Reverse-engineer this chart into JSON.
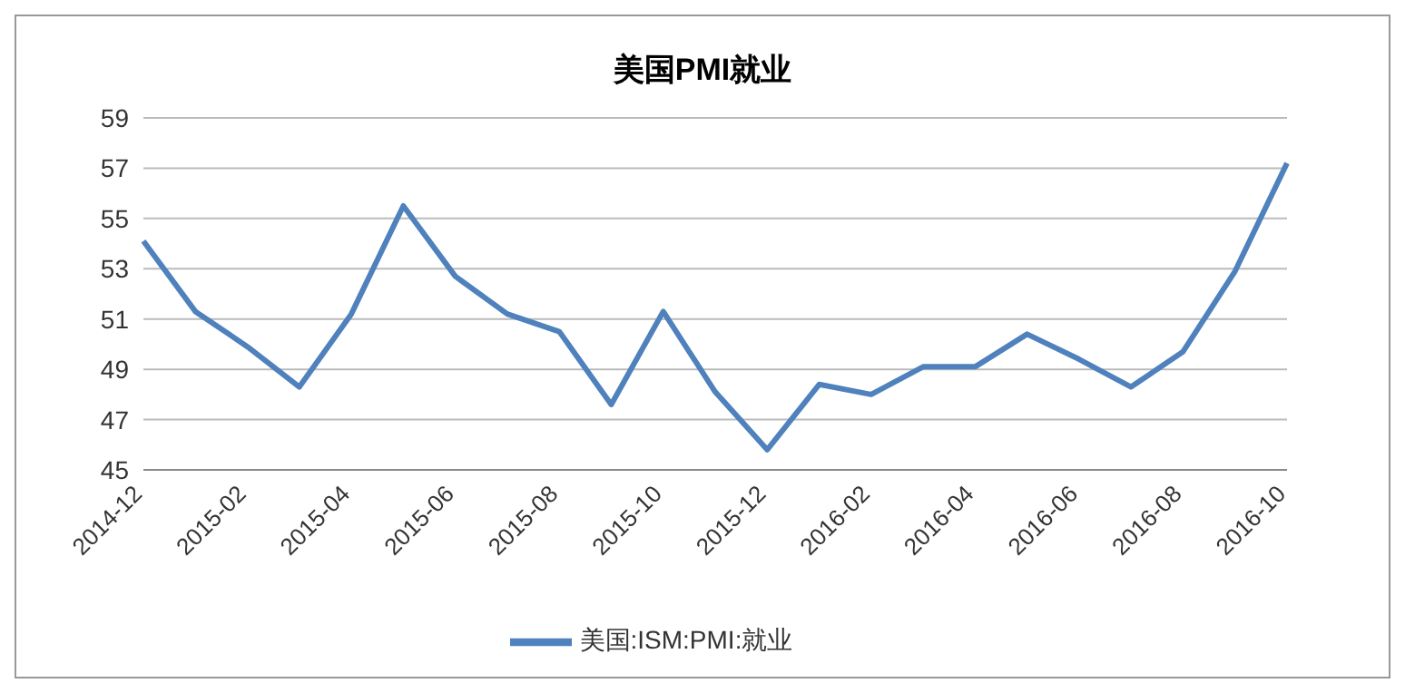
{
  "chart_data": {
    "type": "line",
    "title": "美国PMI就业",
    "categories": [
      "2014-12",
      null,
      "2015-02",
      null,
      "2015-04",
      null,
      "2015-06",
      null,
      "2015-08",
      null,
      "2015-10",
      null,
      "2015-12",
      null,
      "2016-02",
      null,
      "2016-04",
      null,
      "2016-06",
      null,
      "2016-08",
      null,
      "2016-10"
    ],
    "series": [
      {
        "name": "美国:ISM:PMI:就业",
        "color": "#4f81bd",
        "values": [
          54.1,
          51.3,
          49.9,
          48.3,
          51.2,
          55.5,
          52.7,
          51.2,
          50.5,
          47.6,
          51.3,
          48.1,
          45.8,
          48.4,
          48.0,
          49.1,
          49.1,
          50.4,
          49.4,
          48.3,
          49.7,
          52.9,
          57.2
        ]
      }
    ],
    "ylim": [
      45,
      59
    ],
    "yticks": [
      45,
      47,
      49,
      51,
      53,
      55,
      57,
      59
    ],
    "grid": "y",
    "legend": "bottom",
    "marker": "none",
    "line_style": "solid"
  }
}
